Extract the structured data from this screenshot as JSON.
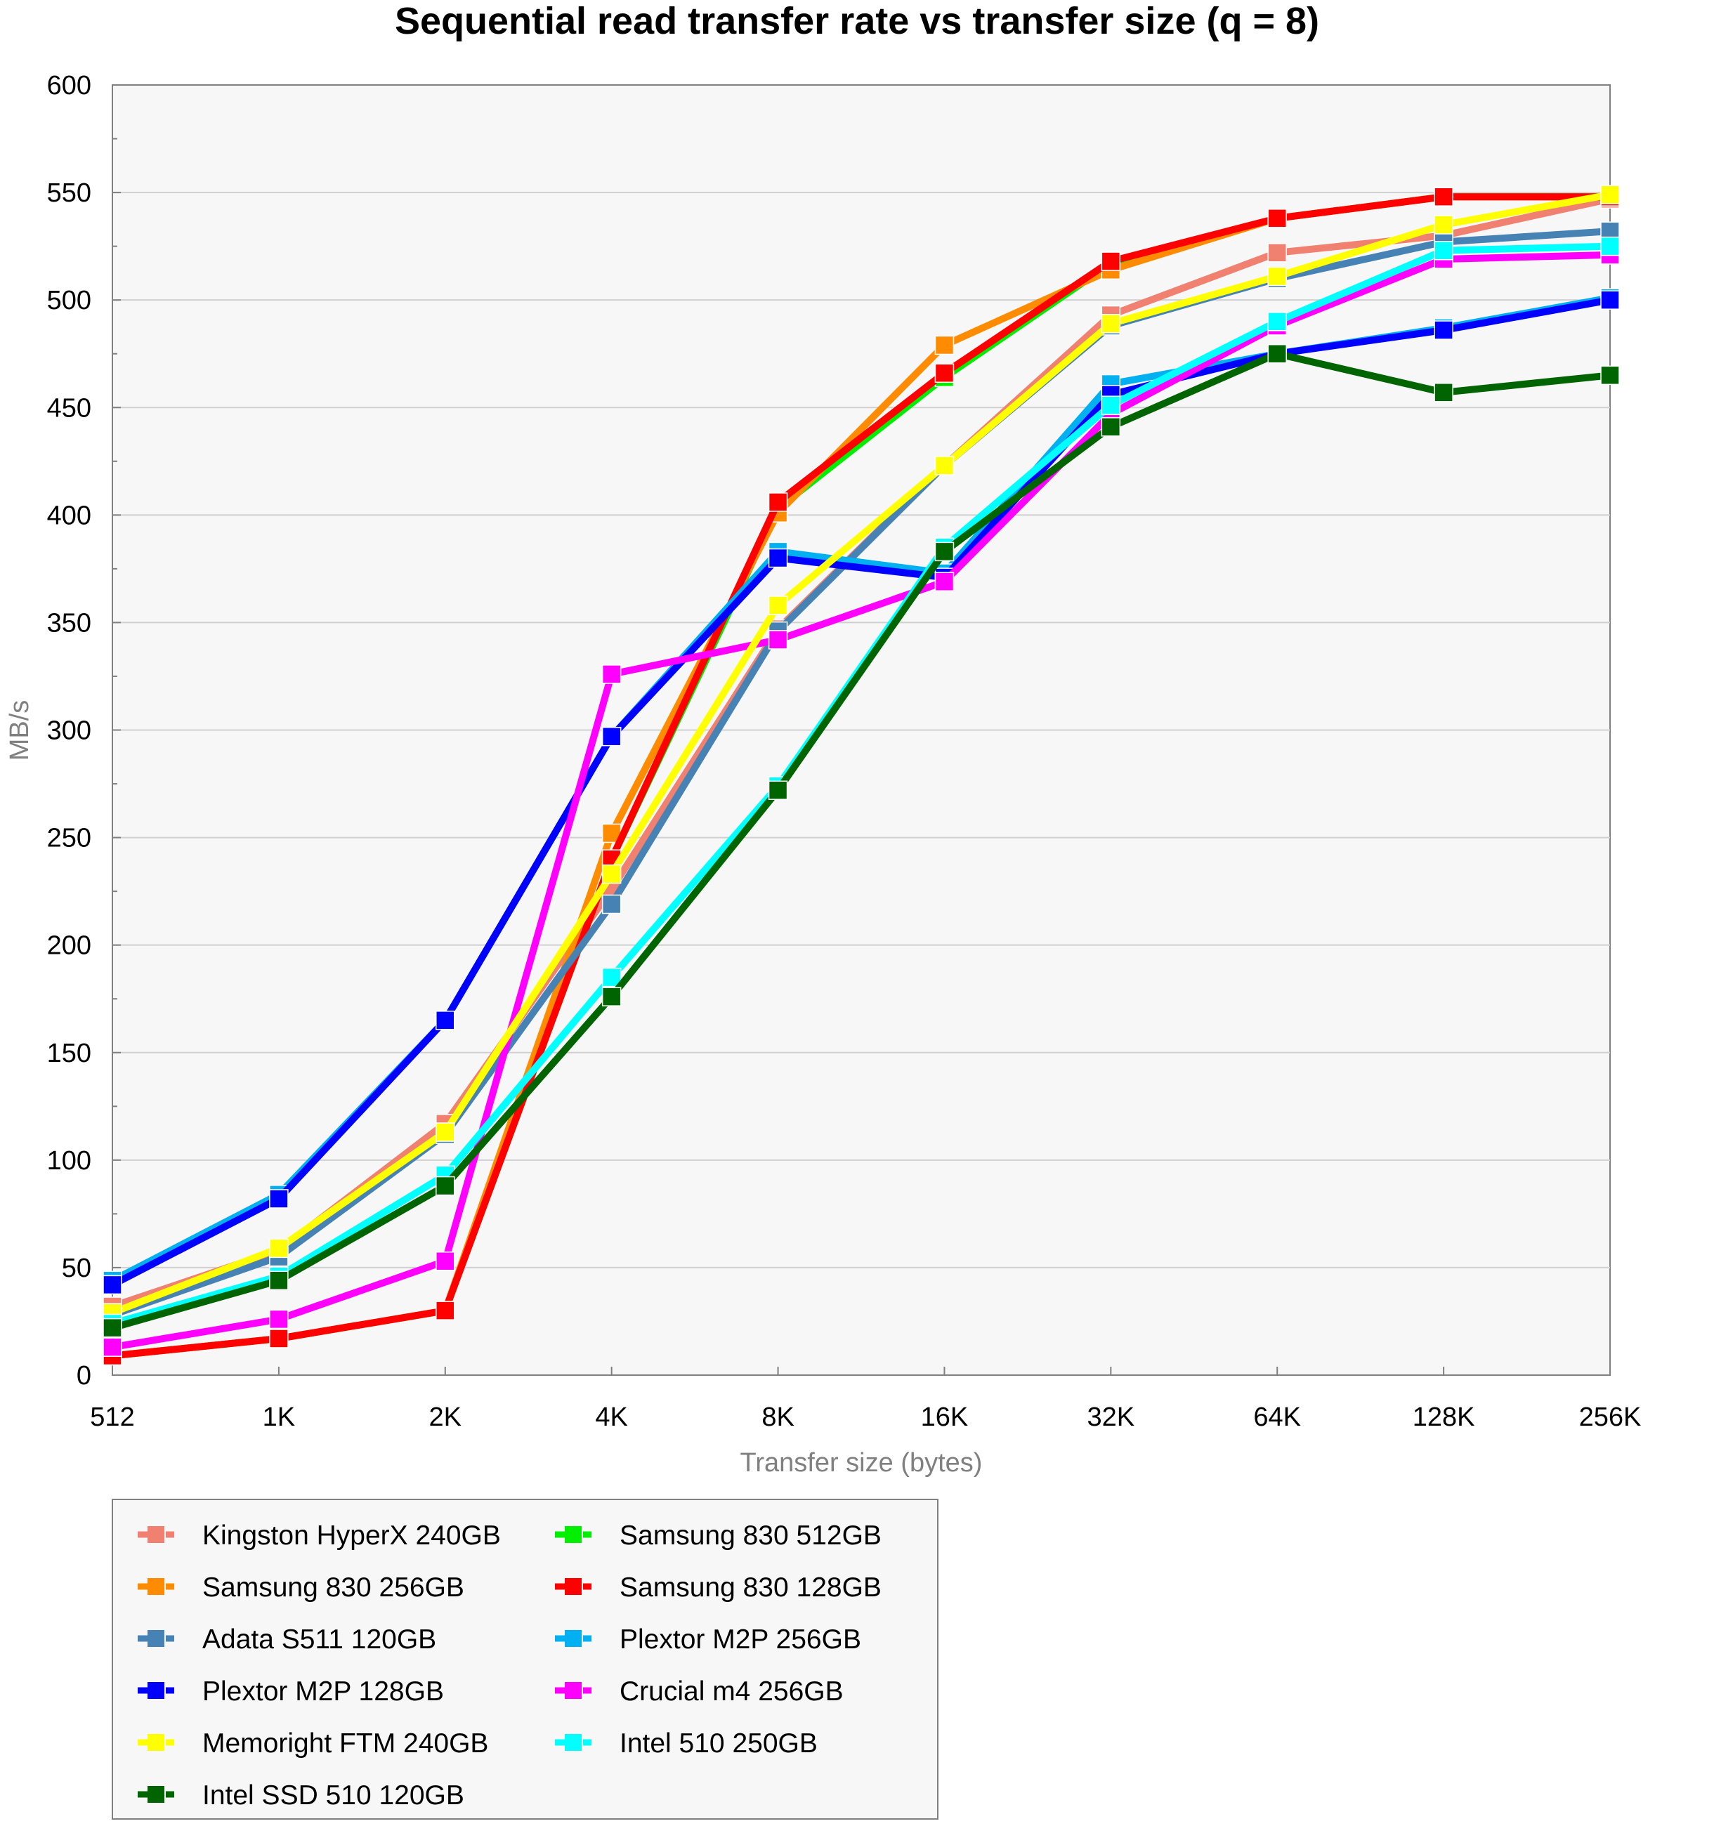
{
  "chart_data": {
    "type": "line",
    "title": "Sequential read transfer rate vs transfer size (q = 8)",
    "xlabel": "Transfer size (bytes)",
    "ylabel": "MB/s",
    "categories": [
      "512",
      "1K",
      "2K",
      "4K",
      "8K",
      "16K",
      "32K",
      "64K",
      "128K",
      "256K"
    ],
    "ylim": [
      0,
      600
    ],
    "yticks": [
      0,
      50,
      100,
      150,
      200,
      250,
      300,
      350,
      400,
      450,
      500,
      550,
      600
    ],
    "grid": "horizontal",
    "legend_position": "bottom",
    "series": [
      {
        "name": "Kingston HyperX 240GB",
        "color": "#f08070",
        "values": [
          32,
          58,
          117,
          226,
          347,
          423,
          493,
          522,
          530,
          547
        ]
      },
      {
        "name": "Samsung 830 512GB",
        "color": "#00ee00",
        "values": [
          9,
          17,
          30,
          240,
          403,
          464,
          517,
          538,
          548,
          548
        ]
      },
      {
        "name": "Samsung 830 256GB",
        "color": "#ff8c00",
        "values": [
          9,
          17,
          30,
          252,
          401,
          479,
          514,
          538,
          548,
          548
        ]
      },
      {
        "name": "Samsung 830 128GB",
        "color": "#ff0000",
        "values": [
          9,
          17,
          30,
          240,
          406,
          466,
          518,
          538,
          548,
          548
        ]
      },
      {
        "name": "Adata S511 120GB",
        "color": "#4682b4",
        "values": [
          28,
          55,
          112,
          219,
          346,
          423,
          488,
          510,
          527,
          532
        ]
      },
      {
        "name": "Plextor M2P 256GB",
        "color": "#00b0f0",
        "values": [
          44,
          84,
          165,
          297,
          383,
          373,
          461,
          475,
          487,
          501
        ]
      },
      {
        "name": "Plextor M2P 128GB",
        "color": "#0000ff",
        "values": [
          42,
          82,
          165,
          297,
          380,
          371,
          456,
          475,
          486,
          500
        ]
      },
      {
        "name": "Crucial m4 256GB",
        "color": "#ff00ff",
        "values": [
          13,
          26,
          53,
          326,
          342,
          369,
          447,
          488,
          519,
          521
        ]
      },
      {
        "name": "Memoright FTM 240GB",
        "color": "#ffff00",
        "values": [
          29,
          59,
          113,
          233,
          358,
          423,
          489,
          511,
          535,
          549
        ]
      },
      {
        "name": "Intel 510 250GB",
        "color": "#00ffff",
        "values": [
          24,
          46,
          93,
          185,
          274,
          385,
          451,
          490,
          523,
          525
        ]
      },
      {
        "name": "Intel SSD 510 120GB",
        "color": "#006400",
        "values": [
          22,
          44,
          88,
          176,
          272,
          383,
          441,
          475,
          457,
          465
        ]
      }
    ],
    "legend": {
      "columns": [
        [
          "Kingston HyperX 240GB",
          "Samsung 830 256GB",
          "Adata S511 120GB",
          "Plextor M2P 128GB",
          "Memoright FTM 240GB",
          "Intel SSD 510 120GB"
        ],
        [
          "Samsung 830 512GB",
          "Samsung 830 128GB",
          "Plextor M2P 256GB",
          "Crucial m4 256GB",
          "Intel 510 250GB"
        ]
      ]
    }
  }
}
